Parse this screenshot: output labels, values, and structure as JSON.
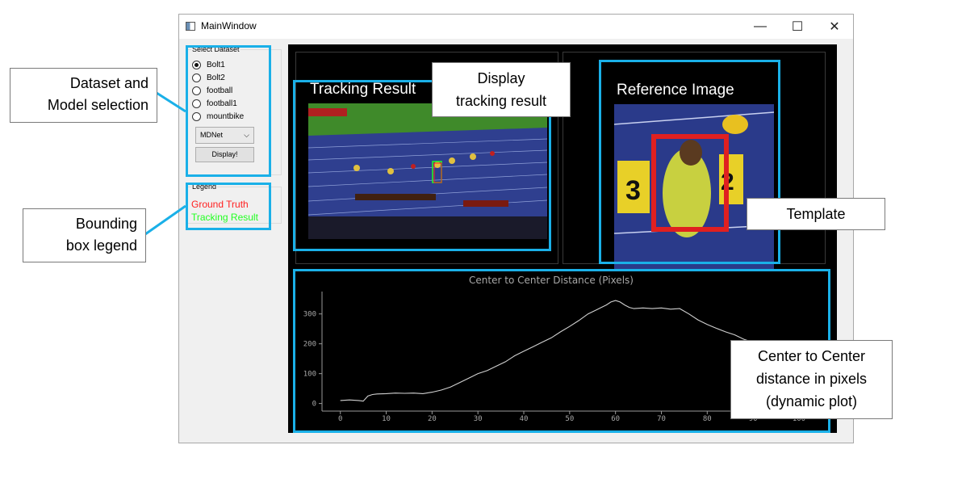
{
  "window": {
    "title": "MainWindow",
    "minimize_glyph": "—",
    "maximize_glyph": "☐",
    "close_glyph": "✕"
  },
  "dataset_group": {
    "title": "Select Dataset",
    "options": [
      "Bolt1",
      "Bolt2",
      "football",
      "football1",
      "mountbike"
    ],
    "selected": "Bolt1"
  },
  "model_select": {
    "value": "MDNet"
  },
  "display_button": {
    "label": "Display!"
  },
  "legend_group": {
    "title": "Legend",
    "ground_truth": "Ground Truth",
    "tracking_result": "Tracking Result",
    "ground_truth_color": "#ff2020",
    "tracking_result_color": "#22ff22"
  },
  "panes": {
    "tracking_title": "Tracking Result",
    "reference_title": "Reference Image"
  },
  "annotations": {
    "dataset": [
      "Dataset and",
      "Model selection"
    ],
    "legend": [
      "Bounding",
      "box legend"
    ],
    "display": [
      "Display",
      "tracking result"
    ],
    "template": "Template",
    "plot": [
      "Center to Center",
      "distance in pixels",
      "(dynamic plot)"
    ]
  },
  "colors": {
    "callout_border": "#1ab0e8",
    "plot_line": "#d0d0d0",
    "plot_axis": "#9a9a9a",
    "track_bg": "#2f3f8f",
    "field_green": "#3f8a2a"
  },
  "chart_data": {
    "type": "line",
    "title": "Center to Center Distance (Pixels)",
    "xlabel": "",
    "ylabel": "",
    "xlim": [
      -4,
      103
    ],
    "ylim": [
      -20,
      375
    ],
    "xticks": [
      0,
      10,
      20,
      30,
      40,
      50,
      60,
      70,
      80,
      90,
      100
    ],
    "yticks": [
      0,
      100,
      200,
      300
    ],
    "x": [
      0,
      2,
      4,
      5,
      6,
      7,
      8,
      10,
      12,
      14,
      16,
      18,
      20,
      22,
      24,
      26,
      28,
      30,
      32,
      34,
      36,
      38,
      40,
      42,
      44,
      46,
      48,
      50,
      52,
      54,
      56,
      58,
      59,
      60,
      61,
      62,
      63,
      64,
      66,
      68,
      70,
      72,
      74,
      76,
      78,
      80,
      82,
      84,
      86,
      88,
      90,
      92,
      94,
      96
    ],
    "series": [
      {
        "values": [
          10,
          12,
          10,
          8,
          25,
          30,
          32,
          33,
          35,
          34,
          35,
          33,
          38,
          45,
          55,
          70,
          85,
          100,
          110,
          125,
          140,
          160,
          175,
          190,
          205,
          220,
          240,
          258,
          278,
          300,
          315,
          330,
          340,
          345,
          340,
          330,
          322,
          318,
          320,
          318,
          320,
          316,
          318,
          300,
          280,
          265,
          252,
          240,
          230,
          215,
          205,
          198,
          193,
          190
        ]
      }
    ]
  }
}
